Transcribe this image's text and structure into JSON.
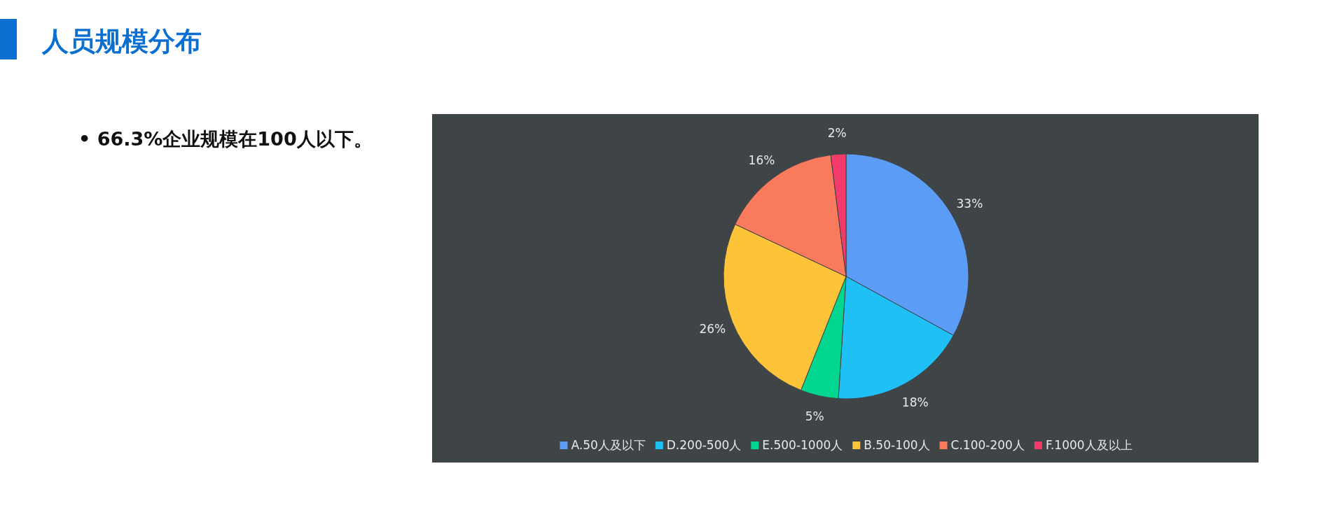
{
  "chart_data": {
    "type": "pie",
    "title": "人员规模分布",
    "annotations": [
      "• 66.3%企业规模在100人以下。"
    ],
    "categories": [
      "A.50人及以下",
      "D.200-500人",
      "E.500-1000人",
      "B.50-100人",
      "C.100-200人",
      "F.1000人及以上"
    ],
    "values": [
      33,
      18,
      5,
      26,
      16,
      2
    ],
    "colors": [
      "#5b9cf6",
      "#1ec0f5",
      "#00d68f",
      "#fdc43a",
      "#fa7a5e",
      "#f23b6b"
    ],
    "value_labels": [
      "33%",
      "18%",
      "5%",
      "26%",
      "16%",
      "2%"
    ],
    "legend": "bottom"
  }
}
